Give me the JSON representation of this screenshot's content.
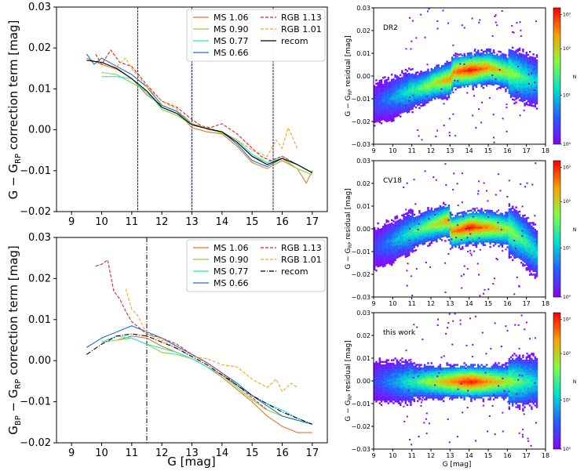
{
  "chart_data": [
    {
      "id": "top-left",
      "type": "line",
      "xlabel": "",
      "ylabel": "G − G_RP correction term [mag]",
      "ylabel_parts": {
        "a": "G − G",
        "sub": "RP",
        "b": " correction term [mag]"
      },
      "xlim": [
        8.5,
        17.5
      ],
      "ylim": [
        -0.02,
        0.03
      ],
      "xticks": [
        "9",
        "10",
        "11",
        "12",
        "13",
        "14",
        "15",
        "16",
        "17"
      ],
      "yticks": [
        "−0.02",
        "−0.01",
        "0.00",
        "0.01",
        "0.02",
        "0.03"
      ],
      "vlines": [
        11.2,
        13.0,
        15.7
      ],
      "legend": [
        "MS 1.06",
        "MS 0.90",
        "MS 0.77",
        "MS 0.66",
        "RGB 1.13",
        "RGB 1.01",
        "recom"
      ],
      "series": [
        {
          "name": "MS 1.06",
          "color": "#e8762a",
          "dash": "",
          "x": [
            9.5,
            10,
            10.5,
            11,
            11.5,
            12,
            12.5,
            13,
            13.5,
            14,
            14.5,
            15,
            15.5,
            16,
            16.5,
            16.8,
            17
          ],
          "y": [
            0.0175,
            0.016,
            0.0148,
            0.0125,
            0.0085,
            0.006,
            0.0045,
            0.0005,
            -0.0005,
            -0.001,
            -0.004,
            -0.008,
            -0.0095,
            -0.0075,
            -0.0095,
            -0.013,
            -0.01
          ]
        },
        {
          "name": "MS 0.90",
          "color": "#7dd93a",
          "dash": "",
          "x": [
            10,
            10.5,
            11,
            11.5,
            12,
            12.5,
            13,
            13.5,
            14,
            14.5,
            15,
            15.5,
            16,
            16.5,
            17
          ],
          "y": [
            0.014,
            0.0135,
            0.0115,
            0.0095,
            0.005,
            0.0035,
            0.0012,
            0.0003,
            -0.0008,
            -0.003,
            -0.0065,
            -0.008,
            -0.007,
            -0.0095,
            -0.011
          ]
        },
        {
          "name": "MS 0.77",
          "color": "#2fe0d8",
          "dash": "",
          "x": [
            10,
            10.5,
            11,
            11.5,
            12,
            12.5,
            13,
            13.5,
            14,
            14.5,
            15,
            15.5,
            16,
            16.5,
            17
          ],
          "y": [
            0.013,
            0.013,
            0.0125,
            0.009,
            0.0055,
            0.004,
            0.0012,
            0.0003,
            -0.0005,
            -0.0025,
            -0.006,
            -0.008,
            -0.0065,
            -0.0085,
            -0.0105
          ]
        },
        {
          "name": "MS 0.66",
          "color": "#1f6fd1",
          "dash": "",
          "x": [
            9.5,
            9.75,
            10,
            10.5,
            11,
            11.5,
            12,
            12.5,
            13,
            13.5,
            14,
            14.5,
            15,
            15.5,
            16,
            16.5,
            17
          ],
          "y": [
            0.0185,
            0.016,
            0.0175,
            0.0155,
            0.0135,
            0.0105,
            0.006,
            0.0045,
            0.0015,
            0.0002,
            -0.0005,
            -0.0035,
            -0.0075,
            -0.009,
            -0.007,
            -0.0085,
            -0.0105
          ]
        },
        {
          "name": "RGB 1.13",
          "color": "#e02525",
          "dash": "4,2",
          "x": [
            9.8,
            10,
            10.3,
            10.6,
            11,
            11.5,
            12,
            12.5,
            13,
            13.3,
            13.6,
            14,
            14.5,
            15,
            15.3,
            15.6,
            16,
            16.5
          ],
          "y": [
            0.0185,
            0.016,
            0.0195,
            0.0165,
            0.0155,
            0.011,
            0.007,
            0.0055,
            0.0025,
            0.001,
            0.0005,
            0.0015,
            -0.001,
            -0.0045,
            -0.0065,
            -0.0075,
            -0.0065,
            -0.0085
          ]
        },
        {
          "name": "RGB 1.01",
          "color": "#f5a623",
          "dash": "4,2",
          "x": [
            10.5,
            10.8,
            11,
            11.5,
            12,
            12.5,
            13,
            13.5,
            14,
            14.5,
            15,
            15.5,
            15.8,
            16,
            16.2,
            16.5
          ],
          "y": [
            0.0155,
            0.0175,
            0.015,
            0.0105,
            0.007,
            0.005,
            0.0015,
            0.0005,
            -0.0005,
            -0.0025,
            -0.005,
            -0.0065,
            -0.0025,
            -0.0045,
            0.0005,
            -0.0045
          ]
        },
        {
          "name": "recom",
          "color": "#000000",
          "dash": "",
          "x": [
            9.5,
            10,
            10.5,
            11,
            11.5,
            12,
            12.5,
            13,
            13.5,
            14,
            14.5,
            15,
            15.5,
            16,
            16.5,
            17
          ],
          "y": [
            0.017,
            0.0165,
            0.015,
            0.0125,
            0.0095,
            0.0055,
            0.004,
            0.0012,
            0.0003,
            -0.0005,
            -0.003,
            -0.0065,
            -0.0085,
            -0.007,
            -0.0085,
            -0.0105
          ]
        }
      ]
    },
    {
      "id": "bottom-left",
      "type": "line",
      "xlabel": "G [mag]",
      "ylabel": "G_BP − G_RP correction term [mag]",
      "ylabel_parts": {
        "a": "G",
        "sub1": "BP",
        "b": " − G",
        "sub2": "RP",
        "c": " correction term [mag]"
      },
      "xlim": [
        8.5,
        17.5
      ],
      "ylim": [
        -0.02,
        0.03
      ],
      "xticks": [
        "9",
        "10",
        "11",
        "12",
        "13",
        "14",
        "15",
        "16",
        "17"
      ],
      "yticks": [
        "−0.02",
        "−0.01",
        "0.00",
        "0.01",
        "0.02",
        "0.03"
      ],
      "vlines": [
        11.5
      ],
      "legend": [
        "MS 1.06",
        "MS 0.90",
        "MS 0.77",
        "MS 0.66",
        "RGB 1.13",
        "RGB 1.01",
        "recom"
      ],
      "series": [
        {
          "name": "MS 1.06",
          "color": "#e8762a",
          "dash": "",
          "x": [
            10.5,
            11,
            11.5,
            12,
            12.5,
            13,
            13.5,
            14,
            14.5,
            15,
            15.5,
            16,
            16.5,
            17
          ],
          "y": [
            0.005,
            0.006,
            0.0055,
            0.0035,
            0.002,
            0.0005,
            -0.0015,
            -0.004,
            -0.007,
            -0.01,
            -0.0135,
            -0.016,
            -0.0175,
            -0.0175
          ]
        },
        {
          "name": "MS 0.90",
          "color": "#7dd93a",
          "dash": "",
          "x": [
            10,
            10.5,
            11,
            11.5,
            12,
            12.5,
            13,
            13.5,
            14,
            14.5,
            15,
            15.5,
            16,
            16.5,
            17
          ],
          "y": [
            0.0045,
            0.005,
            0.0055,
            0.004,
            0.002,
            0.0015,
            0.0005,
            -0.0015,
            -0.0035,
            -0.0065,
            -0.0095,
            -0.012,
            -0.0135,
            -0.0145,
            -0.0155
          ]
        },
        {
          "name": "MS 0.77",
          "color": "#2fe0d8",
          "dash": "",
          "x": [
            10,
            10.5,
            11,
            11.5,
            12,
            12.5,
            13,
            13.5,
            14,
            14.5,
            15,
            15.5,
            16,
            16.5,
            17
          ],
          "y": [
            0.0045,
            0.006,
            0.0055,
            0.004,
            0.003,
            0.002,
            0.0005,
            -0.0015,
            -0.0035,
            -0.006,
            -0.0085,
            -0.0105,
            -0.012,
            -0.014,
            -0.0155
          ]
        },
        {
          "name": "MS 0.66",
          "color": "#1f6fd1",
          "dash": "",
          "x": [
            9.5,
            10,
            10.5,
            11,
            11.5,
            12,
            12.5,
            13,
            13.5,
            14,
            14.5,
            15,
            15.5,
            16,
            16.5,
            17
          ],
          "y": [
            0.0032,
            0.0055,
            0.007,
            0.0085,
            0.007,
            0.0055,
            0.0035,
            0.0015,
            -0.0005,
            -0.003,
            -0.0055,
            -0.0085,
            -0.011,
            -0.0135,
            -0.0145,
            -0.0155
          ]
        },
        {
          "name": "RGB 1.13",
          "color": "#e02525",
          "dash": "4,2",
          "x": [
            9.8,
            10,
            10.2,
            10.4,
            10.6,
            10.8,
            11,
            11.5,
            12,
            12.5,
            13,
            13.5,
            14,
            14.5,
            15,
            15.5
          ],
          "y": [
            0.023,
            0.0235,
            0.0245,
            0.017,
            0.015,
            0.012,
            0.0095,
            0.0065,
            0.0055,
            0.004,
            0.0015,
            -0.0005,
            -0.003,
            -0.006,
            -0.009,
            -0.012
          ]
        },
        {
          "name": "RGB 1.01",
          "color": "#f5a623",
          "dash": "4,2",
          "x": [
            10.8,
            11,
            11.2,
            11.5,
            12,
            12.5,
            13,
            13.5,
            14,
            14.5,
            15,
            15.5,
            15.8,
            16,
            16.3,
            16.5
          ],
          "y": [
            0.0175,
            0.0125,
            0.011,
            0.0065,
            0.005,
            0.003,
            0.001,
            0.0005,
            -0.001,
            -0.0015,
            -0.0045,
            -0.0065,
            -0.0045,
            -0.0075,
            -0.0055,
            -0.0065
          ]
        },
        {
          "name": "recom",
          "color": "#000000",
          "dash": "6,2,1,2",
          "x": [
            9.5,
            10,
            10.5,
            11,
            11.5,
            12,
            12.5,
            13,
            13.5,
            14,
            14.5,
            15,
            15.5,
            16,
            16.5,
            17
          ],
          "y": [
            0.0015,
            0.004,
            0.006,
            0.0065,
            0.006,
            0.0045,
            0.003,
            0.001,
            -0.001,
            -0.0035,
            -0.006,
            -0.0085,
            -0.0105,
            -0.0125,
            -0.014,
            -0.0155
          ]
        }
      ]
    },
    {
      "id": "right-panels",
      "type": "heatmap",
      "xlabel": "G [mag]",
      "ylabel": "G − G_RP residual [mag]",
      "ylabel_parts": {
        "a": "G − G",
        "sub": "RP",
        "b": " residual [mag]"
      },
      "xlim": [
        9,
        18
      ],
      "ylim": [
        -0.03,
        0.03
      ],
      "xticks": [
        "9",
        "10",
        "11",
        "12",
        "13",
        "14",
        "15",
        "16",
        "17",
        "18"
      ],
      "yticks": [
        "−0.03",
        "−0.02",
        "−0.01",
        "0.00",
        "0.01",
        "0.02",
        "0.03"
      ],
      "colorbar_label": "N",
      "colorbar_ticks": [
        "10⁰",
        "10¹",
        "10²",
        "10³"
      ],
      "panels": [
        {
          "label": "DR2",
          "centerline": {
            "x": [
              9,
              10,
              11,
              11.9,
              12,
              13,
              13.1,
              14,
              15,
              16,
              17,
              17.5
            ],
            "y": [
              -0.012,
              -0.009,
              -0.006,
              -0.004,
              -0.003,
              -0.001,
              0.002,
              0.003,
              0.004,
              0.002,
              -0.001,
              -0.002
            ]
          }
        },
        {
          "label": "CV18",
          "centerline": {
            "x": [
              9,
              10,
              11,
              12,
              12.9,
              13,
              14,
              15,
              16,
              17,
              17.5
            ],
            "y": [
              -0.008,
              -0.005,
              -0.001,
              0.002,
              0.004,
              -0.001,
              0.001,
              0.001,
              0.0,
              -0.006,
              -0.01
            ]
          }
        },
        {
          "label": "this work",
          "centerline": {
            "x": [
              9,
              10,
              11,
              12,
              13,
              14,
              15,
              16,
              17,
              17.5
            ],
            "y": [
              0.0,
              0.0,
              0.0,
              0.0,
              0.0,
              0.0,
              0.0,
              0.0,
              0.0,
              0.0
            ]
          }
        }
      ]
    }
  ]
}
